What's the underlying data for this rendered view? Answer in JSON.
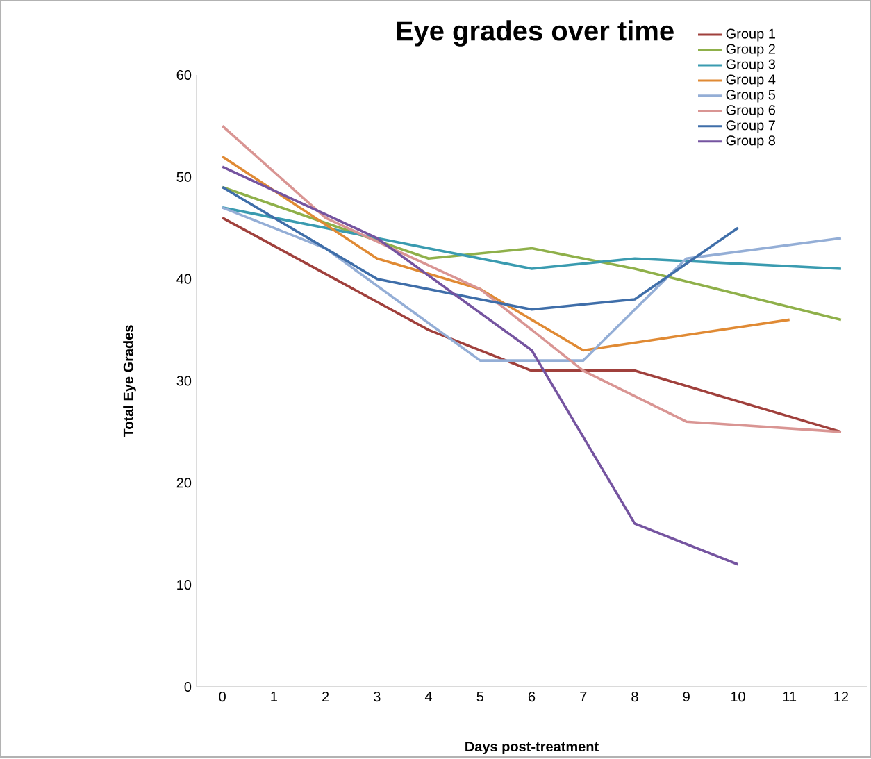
{
  "chart_data": {
    "type": "line",
    "title": "Eye grades over time",
    "xlabel": "Days post-treatment",
    "ylabel": "Total Eye Grades",
    "categories": [
      "0",
      "1",
      "2",
      "3",
      "4",
      "5",
      "6",
      "7",
      "8",
      "9",
      "10",
      "11",
      "12"
    ],
    "ylim": [
      0,
      60
    ],
    "yticks": [
      0,
      10,
      20,
      30,
      40,
      50,
      60
    ],
    "legend": "top right",
    "series": [
      {
        "name": "Group 1",
        "color": "#a0403c",
        "values": [
          46,
          null,
          null,
          null,
          35,
          null,
          31,
          null,
          31,
          null,
          null,
          null,
          25
        ]
      },
      {
        "name": "Group 2",
        "color": "#8fb04a",
        "values": [
          49,
          null,
          null,
          null,
          42,
          null,
          43,
          null,
          41,
          null,
          null,
          null,
          36
        ]
      },
      {
        "name": "Group 3",
        "color": "#3a9bb0",
        "values": [
          47,
          null,
          null,
          44,
          null,
          null,
          41,
          null,
          42,
          null,
          null,
          null,
          41
        ]
      },
      {
        "name": "Group 4",
        "color": "#e08a34",
        "values": [
          52,
          null,
          null,
          42,
          null,
          39,
          null,
          33,
          null,
          null,
          null,
          36,
          null
        ]
      },
      {
        "name": "Group 5",
        "color": "#94aed6",
        "values": [
          47,
          null,
          43,
          null,
          null,
          32,
          null,
          32,
          null,
          42,
          null,
          null,
          44
        ]
      },
      {
        "name": "Group 6",
        "color": "#d99593",
        "values": [
          55,
          null,
          46,
          null,
          null,
          39,
          null,
          31,
          null,
          26,
          null,
          null,
          25
        ]
      },
      {
        "name": "Group 7",
        "color": "#3f6ea9",
        "values": [
          49,
          null,
          43,
          40,
          null,
          null,
          37,
          null,
          38,
          null,
          45,
          null,
          null
        ]
      },
      {
        "name": "Group 8",
        "color": "#7554a0",
        "values": [
          51,
          null,
          null,
          44,
          null,
          null,
          33,
          null,
          16,
          null,
          12,
          null,
          null
        ]
      }
    ]
  }
}
